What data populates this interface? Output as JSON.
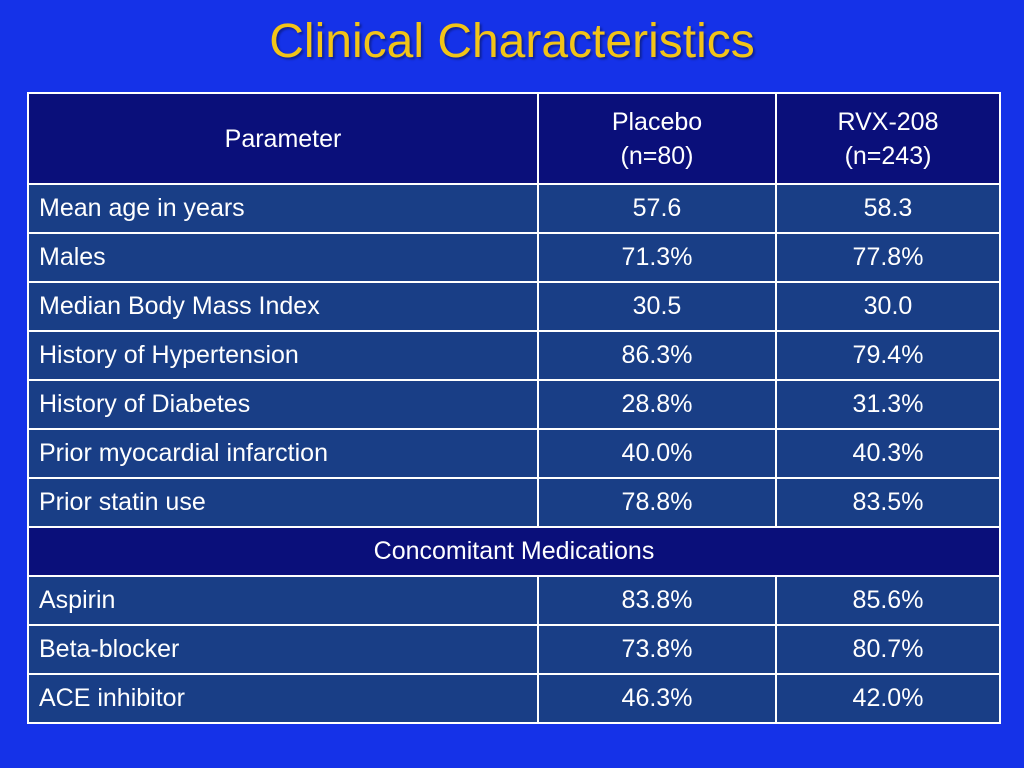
{
  "title": "Clinical Characteristics",
  "colors": {
    "background": "#1532e8",
    "title": "#f2c418",
    "header_fill": "#0a0f7a",
    "row_fill": "#193e86",
    "border": "#ffffff",
    "text": "#ffffff"
  },
  "table": {
    "headers": {
      "parameter": "Parameter",
      "placebo_line1": "Placebo",
      "placebo_line2": "(n=80)",
      "rvx_line1": "RVX-208",
      "rvx_line2": "(n=243)"
    },
    "rows": [
      {
        "parameter": "Mean age in years",
        "placebo": "57.6",
        "rvx208": "58.3"
      },
      {
        "parameter": "Males",
        "placebo": "71.3%",
        "rvx208": "77.8%"
      },
      {
        "parameter": "Median Body Mass Index",
        "placebo": "30.5",
        "rvx208": "30.0"
      },
      {
        "parameter": "History of Hypertension",
        "placebo": "86.3%",
        "rvx208": "79.4%"
      },
      {
        "parameter": "History of Diabetes",
        "placebo": "28.8%",
        "rvx208": "31.3%"
      },
      {
        "parameter": "Prior myocardial infarction",
        "placebo": "40.0%",
        "rvx208": "40.3%"
      },
      {
        "parameter": "Prior statin use",
        "placebo": "78.8%",
        "rvx208": "83.5%"
      }
    ],
    "section_label": "Concomitant Medications",
    "medication_rows": [
      {
        "parameter": "Aspirin",
        "placebo": "83.8%",
        "rvx208": "85.6%"
      },
      {
        "parameter": "Beta-blocker",
        "placebo": "73.8%",
        "rvx208": "80.7%"
      },
      {
        "parameter": "ACE inhibitor",
        "placebo": "46.3%",
        "rvx208": "42.0%"
      }
    ]
  }
}
